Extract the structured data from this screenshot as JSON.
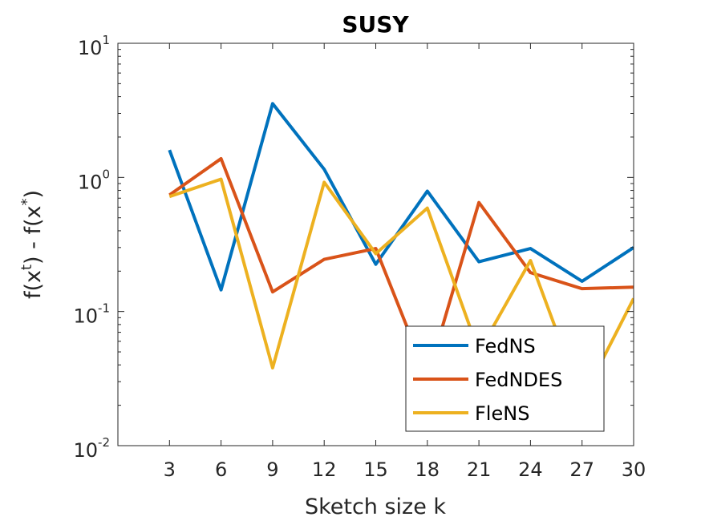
{
  "chart_data": {
    "type": "line",
    "title": "SUSY",
    "xlabel": "Sketch size k",
    "ylabel_parts": [
      "f(x",
      "t",
      ") - f(x",
      "*",
      ")"
    ],
    "y_scale": "log",
    "xlim": [
      0,
      30
    ],
    "ylim": [
      0.01,
      10
    ],
    "x": [
      3,
      6,
      9,
      12,
      15,
      18,
      21,
      24,
      27,
      30
    ],
    "x_ticks": [
      "3",
      "6",
      "9",
      "12",
      "15",
      "18",
      "21",
      "24",
      "27",
      "30"
    ],
    "y_ticks": [
      {
        "value": 10,
        "base": "10",
        "exp": "1"
      },
      {
        "value": 1,
        "base": "10",
        "exp": "0"
      },
      {
        "value": 0.1,
        "base": "10",
        "exp": "-1"
      },
      {
        "value": 0.01,
        "base": "10",
        "exp": "-2"
      }
    ],
    "series": [
      {
        "name": "FedNS",
        "color": "#0072BD",
        "values": [
          1.6,
          0.145,
          3.55,
          1.15,
          0.225,
          0.79,
          0.235,
          0.295,
          0.168,
          0.3
        ]
      },
      {
        "name": "FedNDES",
        "color": "#D95319",
        "values": [
          0.74,
          1.38,
          0.14,
          0.245,
          0.295,
          0.032,
          0.65,
          0.195,
          0.148,
          0.152
        ]
      },
      {
        "name": "FleNS",
        "color": "#EDB120",
        "values": [
          0.72,
          0.97,
          0.038,
          0.92,
          0.27,
          0.59,
          0.05,
          0.24,
          0.022,
          0.125
        ]
      }
    ],
    "grid": false,
    "legend_position": "bottom-right"
  }
}
